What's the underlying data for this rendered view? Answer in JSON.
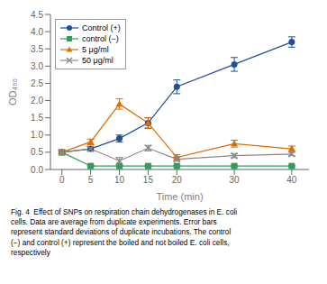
{
  "chart_data": {
    "type": "line",
    "xlabel": "Time (min)",
    "ylabel": "OD₄₉₀",
    "x": [
      0,
      5,
      10,
      15,
      20,
      30,
      40
    ],
    "xlim": [
      -2,
      43
    ],
    "xticks": [
      0,
      5,
      10,
      15,
      20,
      30,
      40
    ],
    "ylim": [
      0,
      4.5
    ],
    "yticks": [
      {
        "value": 0,
        "label": "0.0"
      },
      0.5,
      {
        "value": 1.0,
        "label": "1.0"
      },
      1.5,
      {
        "value": 2.0,
        "label": "2.0"
      },
      2.5,
      {
        "value": 3.0,
        "label": "3.0"
      },
      3.5,
      {
        "value": 4.0,
        "label": "4.0"
      },
      4.5
    ],
    "grid": false,
    "legend": "upper left",
    "series": [
      {
        "name": "Control (+)",
        "color": "#1f4e9c",
        "marker": "circle",
        "values": [
          0.5,
          0.6,
          0.9,
          1.35,
          2.4,
          3.05,
          3.7
        ],
        "errors": [
          0.05,
          0.05,
          0.1,
          0.15,
          0.2,
          0.2,
          0.15
        ]
      },
      {
        "name": "control (−)",
        "color": "#2e9e5b",
        "marker": "square",
        "values": [
          0.5,
          0.1,
          0.1,
          0.1,
          0.1,
          0.1,
          0.1
        ],
        "errors": [
          0.03,
          0.02,
          0.02,
          0.02,
          0.02,
          0.02,
          0.02
        ]
      },
      {
        "name": "5 μg/ml",
        "color": "#e06c00",
        "marker": "triangle",
        "values": [
          0.5,
          0.8,
          1.9,
          1.35,
          0.35,
          0.75,
          0.6
        ],
        "errors": [
          0.05,
          0.08,
          0.15,
          0.15,
          0.08,
          0.1,
          0.08
        ]
      },
      {
        "name": "50 μg/ml",
        "color": "#888888",
        "marker": "x",
        "values": [
          0.5,
          0.6,
          0.25,
          0.62,
          0.3,
          0.4,
          0.45
        ],
        "errors": [
          0.04,
          0.05,
          0.1,
          0.08,
          0.06,
          0.06,
          0.05
        ]
      }
    ],
    "annotations": [
      "Fig. 4  Effect of SNPs on respiration chain dehydrogenases in E. coli",
      "cells. Data are average from duplicate experiments. Error bars",
      "represent standard deviations of duplicate incubations. The control",
      "(−) and control (+) represent the boiled and not boiled E. coli cells,",
      "respectively"
    ]
  }
}
